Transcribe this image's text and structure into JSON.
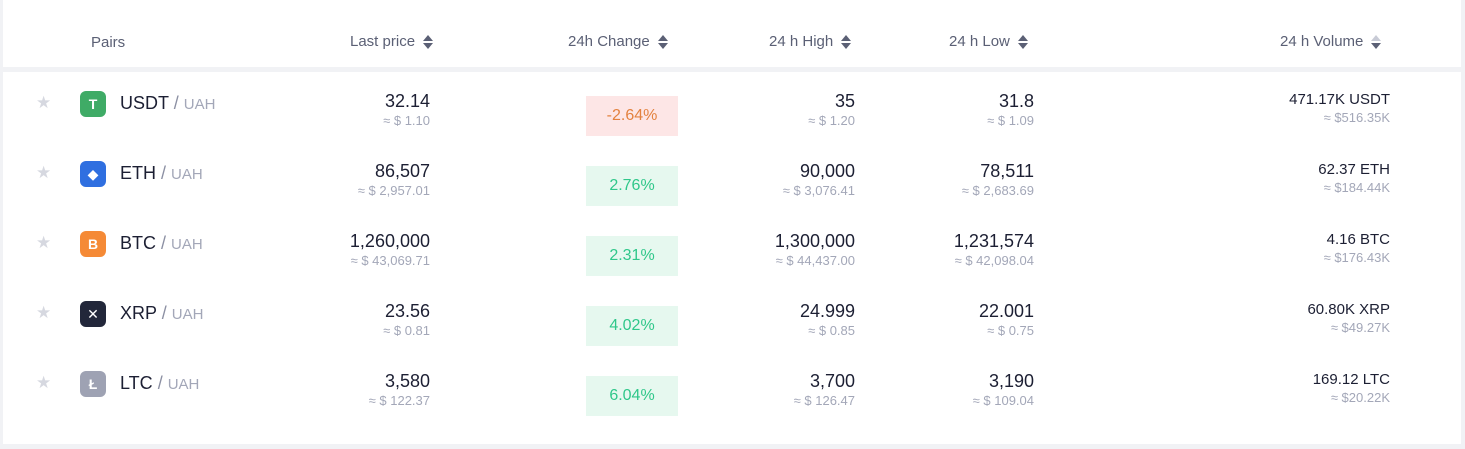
{
  "header": {
    "pairs": "Pairs",
    "last_price": "Last price",
    "change_24h": "24h Change",
    "high_24h": "24 h High",
    "low_24h": "24 h Low",
    "volume_24h": "24 h Volume"
  },
  "rows": [
    {
      "base": "USDT",
      "sep": "/",
      "quote": "UAH",
      "icon": "tether-icon",
      "color": "#3fab66",
      "last": "32.14",
      "last_usd": "≈ $ 1.10",
      "change": "-2.64%",
      "change_sign": "negative",
      "high": "35",
      "high_usd": "≈ $ 1.20",
      "low": "31.8",
      "low_usd": "≈ $ 1.09",
      "vol": "471.17K USDT",
      "vol_usd": "≈ $516.35K"
    },
    {
      "base": "ETH",
      "sep": "/",
      "quote": "UAH",
      "icon": "ethereum-icon",
      "color": "#2f6fe0",
      "last": "86,507",
      "last_usd": "≈ $ 2,957.01",
      "change": "2.76%",
      "change_sign": "positive",
      "high": "90,000",
      "high_usd": "≈ $ 3,076.41",
      "low": "78,511",
      "low_usd": "≈ $ 2,683.69",
      "vol": "62.37 ETH",
      "vol_usd": "≈ $184.44K"
    },
    {
      "base": "BTC",
      "sep": "/",
      "quote": "UAH",
      "icon": "bitcoin-icon",
      "color": "#f58a36",
      "last": "1,260,000",
      "last_usd": "≈ $ 43,069.71",
      "change": "2.31%",
      "change_sign": "positive",
      "high": "1,300,000",
      "high_usd": "≈ $ 44,437.00",
      "low": "1,231,574",
      "low_usd": "≈ $ 42,098.04",
      "vol": "4.16 BTC",
      "vol_usd": "≈ $176.43K"
    },
    {
      "base": "XRP",
      "sep": "/",
      "quote": "UAH",
      "icon": "ripple-icon",
      "color": "#22273a",
      "last": "23.56",
      "last_usd": "≈ $ 0.81",
      "change": "4.02%",
      "change_sign": "positive",
      "high": "24.999",
      "high_usd": "≈ $ 0.85",
      "low": "22.001",
      "low_usd": "≈ $ 0.75",
      "vol": "60.80K XRP",
      "vol_usd": "≈ $49.27K"
    },
    {
      "base": "LTC",
      "sep": "/",
      "quote": "UAH",
      "icon": "litecoin-icon",
      "color": "#9ea2b3",
      "last": "3,580",
      "last_usd": "≈ $ 122.37",
      "change": "6.04%",
      "change_sign": "positive",
      "high": "3,700",
      "high_usd": "≈ $ 126.47",
      "low": "3,190",
      "low_usd": "≈ $ 109.04",
      "vol": "169.12 LTC",
      "vol_usd": "≈ $20.22K"
    }
  ]
}
